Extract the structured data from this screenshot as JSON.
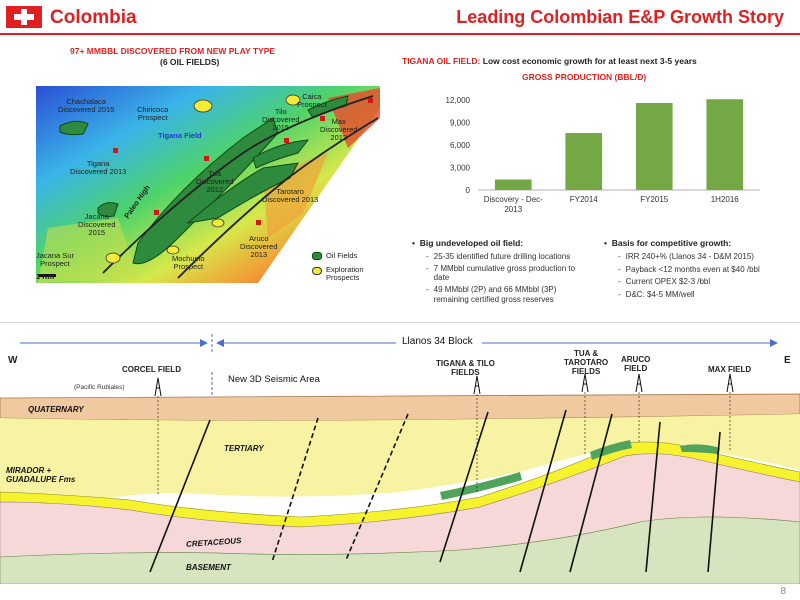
{
  "header": {
    "country": "Colombia",
    "title": "Leading Colombian E&P Growth Story"
  },
  "map_section": {
    "title": "97+ MMBBL DISCOVERED FROM NEW PLAY TYPE",
    "subtitle": "(6 OIL FIELDS)",
    "labels": {
      "chachalaca": "Chachalaca\nDiscovered 2015",
      "chiricoca": "Chiricoca\nProspect",
      "tilo": "Tilo\nDiscovered\n2015",
      "caica": "Caica\nProspect",
      "max": "Max\nDiscovered\n2012",
      "tigana_field": "Tigana Field",
      "tigana": "Tigana\nDiscovered 2013",
      "tua": "Tua\nDiscovered\n2012",
      "tarotaro": "Tarotaro\nDiscovered 2013",
      "jacana": "Jacana\nDiscovered\n2015",
      "paleo_high": "Paleo High",
      "aruco": "Aruco\nDiscovered\n2013",
      "jacana_sur": "Jacana Sur\nProspect",
      "mochuelo": "Mochuelo\nProspect",
      "scale": "1 Km"
    },
    "legend": {
      "oil_fields": "Oil Fields",
      "exploration": "Exploration\nProspects"
    }
  },
  "tigana_section": {
    "title_prefix": "TIGANA OIL FIELD:",
    "title_rest": "Low cost economic growth for at least next 3-5 years",
    "chart_title": "GROSS PRODUCTION (BBL/D)"
  },
  "chart_data": {
    "type": "bar",
    "title": "GROSS PRODUCTION (BBL/D)",
    "categories": [
      "Discovery - Dec-2013",
      "FY2014",
      "FY2015",
      "1H2016"
    ],
    "category_lines": [
      [
        "Discovery - Dec-",
        "2013"
      ],
      [
        "FY2014"
      ],
      [
        "FY2015"
      ],
      [
        "1H2016"
      ]
    ],
    "values": [
      1400,
      7600,
      11600,
      12100
    ],
    "ylim": [
      0,
      12000
    ],
    "yticks": [
      "0",
      "3,000",
      "6,000",
      "9,000",
      "12,000"
    ],
    "bar_color": "#73a845",
    "grid": false
  },
  "bullets": {
    "left": {
      "heading": "Big undeveloped oil field:",
      "items": [
        "25-35 identified future drilling locations",
        "7 MMbbl cumulative gross production to date",
        "49 MMbbl (2P) and 66 MMbbl (3P) remaining certified gross reserves"
      ]
    },
    "right": {
      "heading": "Basis for competitive growth:",
      "items": [
        "IRR 240+% (Llanos 34 - D&M 2015)",
        "Payback <12 months even at $40 /bbl",
        "Current OPEX $2-3 /bbl",
        "D&C: $4-5 MM/well"
      ]
    }
  },
  "cross_section": {
    "block_label": "Llanos 34 Block",
    "west": "W",
    "east": "E",
    "corcel": "CORCEL FIELD",
    "pacific": "(Pacific Rubiales)",
    "seismic": "New 3D Seismic Area",
    "tigana_tilo": "TIGANA & TILO\nFIELDS",
    "tua_tarotaro": "TUA &\nTAROTARO\nFIELDS",
    "aruco": "ARUCO\nFIELD",
    "max": "MAX FIELD",
    "quaternary": "QUATERNARY",
    "tertiary": "TERTIARY",
    "mirador": "MIRADOR +\nGUADALUPE Fms",
    "cretaceous": "CRETACEOUS",
    "basement": "BASEMENT"
  },
  "footer": {
    "page_number": "8"
  },
  "colors": {
    "brand_red": "#e02020",
    "bar_green": "#73a845",
    "quaternary": "#f1c9a0",
    "tertiary": "#f7f3a3",
    "cretaceous": "#f6d8d8",
    "basement": "#d7e4c0",
    "sand": "#f7f22e",
    "oil": "#4fa35a"
  }
}
